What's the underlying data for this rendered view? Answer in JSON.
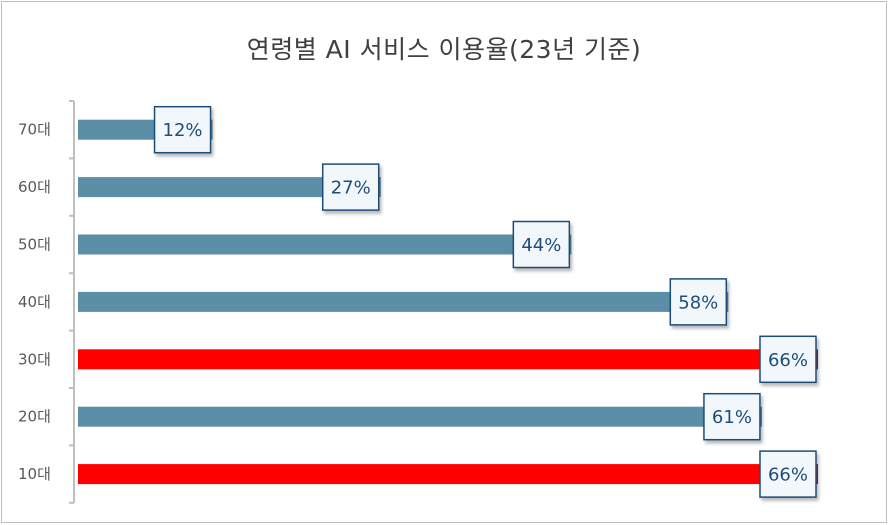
{
  "chart_data": {
    "type": "bar",
    "orientation": "horizontal",
    "title": "연령별 AI 서비스 이용율(23년 기준)",
    "categories": [
      "70대",
      "60대",
      "50대",
      "40대",
      "30대",
      "20대",
      "10대"
    ],
    "values": [
      12,
      27,
      44,
      58,
      66,
      61,
      66
    ],
    "data_labels": [
      "12%",
      "27%",
      "44%",
      "58%",
      "66%",
      "61%",
      "66%"
    ],
    "highlight": [
      false,
      false,
      false,
      false,
      true,
      false,
      true
    ],
    "xlim": [
      0,
      66
    ],
    "grid": false,
    "legend": "none",
    "colors": {
      "bar": "#5b8fa8",
      "highlight": "#ff0000",
      "label_border": "#1f4e79",
      "label_bg": "#f2f7fb",
      "axis": "#bfbfbf"
    }
  }
}
